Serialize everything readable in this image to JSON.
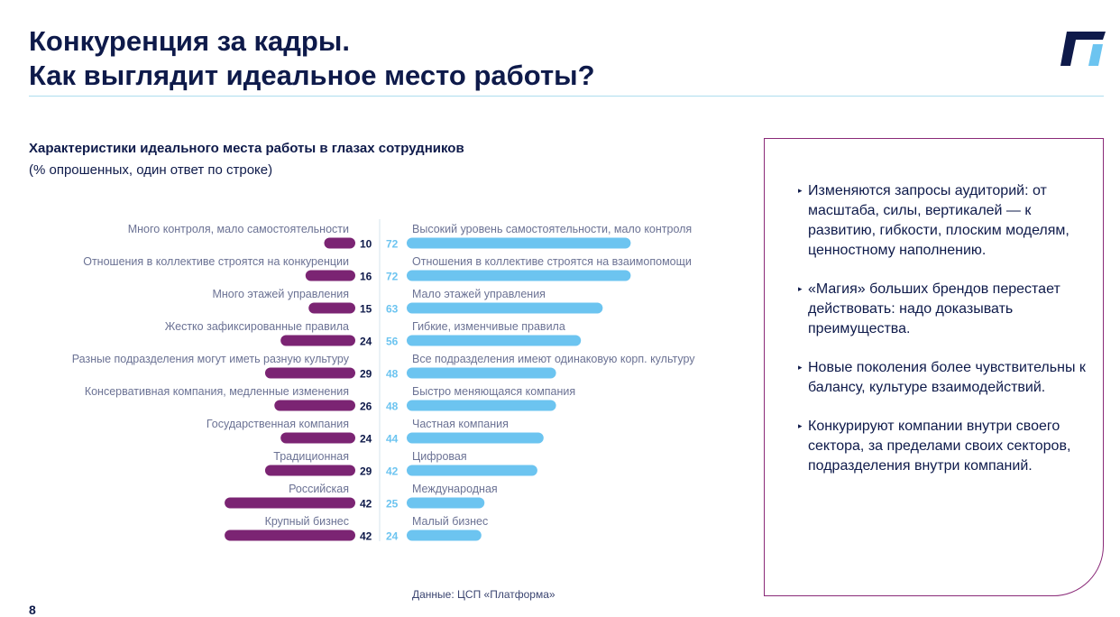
{
  "header": {
    "title_line1": "Конкуренция за кадры.",
    "title_line2": "Как выглядит идеальное место работы?"
  },
  "logo": {
    "icon": "platform-logo-icon",
    "colors": [
      "#0e1a4a",
      "#6cc4f0"
    ]
  },
  "chart_data": {
    "type": "bar",
    "subtype": "diverging-horizontal-bar",
    "title": "Характеристики идеального места работы в глазах сотрудников",
    "subtitle": "(% опрошенных, один ответ по строке)",
    "colors": {
      "left": "#7b2473",
      "right": "#6cc4f0",
      "left_value_text": "#0e1a4a",
      "right_value_text": "#6cc4f0",
      "label_text": "#6b7294"
    },
    "rows": [
      {
        "left_label": "Много контроля, мало самостоятельности",
        "left_value": 10,
        "right_label": "Высокий уровень самостоятельности, мало контроля",
        "right_value": 72
      },
      {
        "left_label": "Отношения в коллективе строятся на конкуренции",
        "left_value": 16,
        "right_label": "Отношения в коллективе строятся на взаимопомощи",
        "right_value": 72
      },
      {
        "left_label": "Много этажей управления",
        "left_value": 15,
        "right_label": "Мало этажей управления",
        "right_value": 63
      },
      {
        "left_label": "Жестко зафиксированные правила",
        "left_value": 24,
        "right_label": "Гибкие, изменчивые правила",
        "right_value": 56
      },
      {
        "left_label": "Разные подразделения могут иметь разную культуру",
        "left_value": 29,
        "right_label": "Все подразделения имеют одинаковую корп. культуру",
        "right_value": 48
      },
      {
        "left_label": "Консервативная компания, медленные изменения",
        "left_value": 26,
        "right_label": "Быстро меняющаяся компания",
        "right_value": 48
      },
      {
        "left_label": "Государственная компания",
        "left_value": 24,
        "right_label": "Частная компания",
        "right_value": 44
      },
      {
        "left_label": "Традиционная",
        "left_value": 29,
        "right_label": "Цифровая",
        "right_value": 42
      },
      {
        "left_label": "Российская",
        "left_value": 42,
        "right_label": "Международная",
        "right_value": 25
      },
      {
        "left_label": "Крупный бизнес",
        "left_value": 42,
        "right_label": "Малый бизнес",
        "right_value": 24
      }
    ]
  },
  "source": "Данные: ЦСП «Платформа»",
  "page_number": "8",
  "panel": {
    "bullet_marker": "▸",
    "bullets": [
      "Изменяются запросы аудиторий: от масштаба, силы, вертикалей — к развитию, гибкости, плоским моделям, ценностному наполнению.",
      "«Магия» больших брендов перестает действовать: надо доказывать преимущества.",
      "Новые поколения более чувствительны к балансу, культуре взаимодействий.",
      "Конкурируют компании внутри своего сектора, за пределами своих секторов, подразделения внутри компаний."
    ]
  }
}
